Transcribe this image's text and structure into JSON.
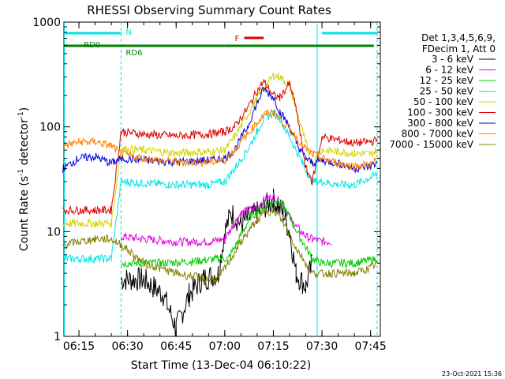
{
  "chart_data": {
    "type": "line",
    "title": "RHESSI Observing Summary Count Rates",
    "xlabel": "Start Time (13-Dec-04 06:10:22)",
    "ylabel": "Count Rate (s⁻¹ detector⁻¹)",
    "ylabel_main": "Count Rate (s",
    "ylabel_sup1": "-1",
    "ylabel_mid": " detector",
    "ylabel_sup2": "-1",
    "ylabel_end": ")",
    "y_scale": "log",
    "ylim": [
      1,
      1000
    ],
    "xlim": [
      "06:10:22",
      "07:48:00"
    ],
    "x_ticks": [
      "06:15",
      "06:30",
      "06:45",
      "07:00",
      "07:15",
      "07:30",
      "07:45"
    ],
    "y_ticks": [
      "1",
      "10",
      "100",
      "1000"
    ],
    "grid": false,
    "date_stamp": "23-Oct-2021 15:36",
    "legend": {
      "placement": "right",
      "header": [
        "Det 1,3,4,5,6,9,",
        "FDecim 1, Att 0"
      ]
    },
    "flags": [
      {
        "label": "N",
        "color": "#00e5e5",
        "segments": [
          [
            "06:10",
            "06:28"
          ],
          [
            "07:30",
            "07:47"
          ]
        ]
      },
      {
        "label": "F",
        "color": "#e00000",
        "segments": [
          [
            "07:06",
            "07:12"
          ]
        ]
      },
      {
        "label": "RD0",
        "color": "#008000",
        "segments": [
          [
            "06:10",
            "06:43"
          ],
          [
            "06:43",
            "07:00"
          ],
          [
            "07:00",
            "07:28"
          ],
          [
            "07:28",
            "07:46"
          ]
        ]
      },
      {
        "label": "RD6",
        "color": "#008000",
        "segments": []
      }
    ],
    "dashed_markers": [
      "06:28",
      "07:47"
    ],
    "solid_markers": [
      "06:10:30",
      "07:28:30"
    ],
    "series": [
      {
        "name": "3 - 6 keV",
        "color": "#000000",
        "x": [
          "06:10",
          "06:27",
          "06:28",
          "06:35",
          "06:41",
          "06:45",
          "06:49",
          "06:53",
          "06:58",
          "07:00",
          "07:02",
          "07:05",
          "07:10",
          "07:13",
          "07:15",
          "07:18",
          "07:20",
          "07:22",
          "07:25",
          "07:27",
          "07:30"
        ],
        "y": [
          null,
          null,
          3.5,
          3.5,
          2.5,
          1.2,
          2.5,
          3.5,
          4,
          10,
          15,
          12,
          15,
          18,
          20,
          15,
          10,
          4,
          3,
          5,
          null
        ]
      },
      {
        "name": "6 - 12 keV",
        "color": "#e000e0",
        "x": [
          "06:10",
          "06:28",
          "06:35",
          "06:45",
          "06:55",
          "07:00",
          "07:03",
          "07:05",
          "07:10",
          "07:12",
          "07:15",
          "07:18",
          "07:21",
          "07:25",
          "07:27",
          "07:30",
          "07:33"
        ],
        "y": [
          null,
          9,
          8.5,
          8,
          8,
          8.5,
          12,
          15,
          17,
          20,
          22,
          18,
          12,
          9,
          8.5,
          8,
          8
        ]
      },
      {
        "name": "12 - 25 keV",
        "color": "#00cc00",
        "x": [
          "06:10",
          "06:28",
          "06:40",
          "06:50",
          "06:58",
          "07:01",
          "07:04",
          "07:08",
          "07:12",
          "07:15",
          "07:18",
          "07:21",
          "07:24",
          "07:27",
          "07:30",
          "07:40",
          "07:47"
        ],
        "y": [
          null,
          5,
          5,
          5.2,
          5.5,
          5.5,
          8,
          14,
          17,
          20,
          18,
          12,
          8,
          5.5,
          5,
          5,
          5.5
        ]
      },
      {
        "name": "25 - 50 keV",
        "color": "#00e5e5",
        "x": [
          "06:10",
          "06:15",
          "06:25",
          "06:28",
          "06:35",
          "06:45",
          "06:55",
          "07:00",
          "07:03",
          "07:07",
          "07:10",
          "07:12",
          "07:15",
          "07:17",
          "07:20",
          "07:24",
          "07:27",
          "07:30",
          "07:35",
          "07:40",
          "07:45",
          "07:47"
        ],
        "y": [
          5.5,
          5.5,
          5.5,
          30,
          29,
          28,
          28,
          30,
          40,
          60,
          90,
          120,
          135,
          120,
          80,
          45,
          30,
          30,
          28,
          28,
          33,
          35
        ]
      },
      {
        "name": "50 - 100 keV",
        "color": "#d4d400",
        "x": [
          "06:10",
          "06:15",
          "06:20",
          "06:25",
          "06:28",
          "06:35",
          "06:45",
          "06:55",
          "07:00",
          "07:03",
          "07:07",
          "07:10",
          "07:12",
          "07:15",
          "07:17",
          "07:20",
          "07:22",
          "07:25",
          "07:27",
          "07:30",
          "07:35",
          "07:40",
          "07:45",
          "07:47"
        ],
        "y": [
          12,
          12,
          12,
          12,
          62,
          60,
          56,
          58,
          60,
          80,
          130,
          190,
          230,
          310,
          300,
          250,
          150,
          70,
          45,
          60,
          58,
          56,
          55,
          60
        ]
      },
      {
        "name": "100 - 300 keV",
        "color": "#e00000",
        "x": [
          "06:10",
          "06:15",
          "06:20",
          "06:25",
          "06:28",
          "06:35",
          "06:45",
          "06:55",
          "07:00",
          "07:03",
          "07:07",
          "07:10",
          "07:12",
          "07:15",
          "07:17",
          "07:20",
          "07:22",
          "07:25",
          "07:27",
          "07:30",
          "07:35",
          "07:40",
          "07:45",
          "07:47"
        ],
        "y": [
          16,
          16,
          16,
          16,
          90,
          85,
          82,
          85,
          90,
          100,
          150,
          220,
          270,
          200,
          190,
          260,
          150,
          40,
          30,
          80,
          75,
          70,
          72,
          75
        ]
      },
      {
        "name": "300 - 800 keV",
        "color": "#0000e0",
        "x": [
          "06:10",
          "06:15",
          "06:20",
          "06:25",
          "06:28",
          "06:35",
          "06:45",
          "06:55",
          "07:00",
          "07:03",
          "07:07",
          "07:10",
          "07:12",
          "07:15",
          "07:17",
          "07:20",
          "07:22",
          "07:25",
          "07:27",
          "07:30",
          "07:35",
          "07:40",
          "07:45",
          "07:47"
        ],
        "y": [
          40,
          50,
          52,
          45,
          50,
          48,
          46,
          48,
          50,
          60,
          100,
          170,
          230,
          190,
          140,
          100,
          70,
          50,
          45,
          48,
          45,
          40,
          42,
          45
        ]
      },
      {
        "name": "800 - 7000 keV",
        "color": "#ff8000",
        "x": [
          "06:10",
          "06:15",
          "06:20",
          "06:25",
          "06:28",
          "06:35",
          "06:45",
          "06:55",
          "07:00",
          "07:03",
          "07:07",
          "07:10",
          "07:12",
          "07:15",
          "07:17",
          "07:20",
          "07:22",
          "07:25",
          "07:27",
          "07:30",
          "07:35",
          "07:40",
          "07:45",
          "07:47"
        ],
        "y": [
          65,
          72,
          72,
          66,
          55,
          50,
          46,
          46,
          48,
          60,
          85,
          110,
          130,
          140,
          120,
          95,
          80,
          62,
          55,
          50,
          45,
          42,
          44,
          48
        ]
      },
      {
        "name": "7000 - 15000 keV",
        "color": "#808000",
        "x": [
          "06:10",
          "06:15",
          "06:20",
          "06:25",
          "06:28",
          "06:35",
          "06:45",
          "06:55",
          "06:58",
          "07:01",
          "07:05",
          "07:10",
          "07:13",
          "07:16",
          "07:19",
          "07:22",
          "07:25",
          "07:27",
          "07:30",
          "07:35",
          "07:40",
          "07:45",
          "07:47"
        ],
        "y": [
          7.5,
          8,
          8.5,
          8.5,
          7.5,
          5,
          4,
          3.5,
          3.5,
          5,
          8,
          13,
          16,
          15,
          11,
          7,
          5,
          4,
          4,
          4,
          4,
          4.5,
          5
        ]
      }
    ]
  }
}
